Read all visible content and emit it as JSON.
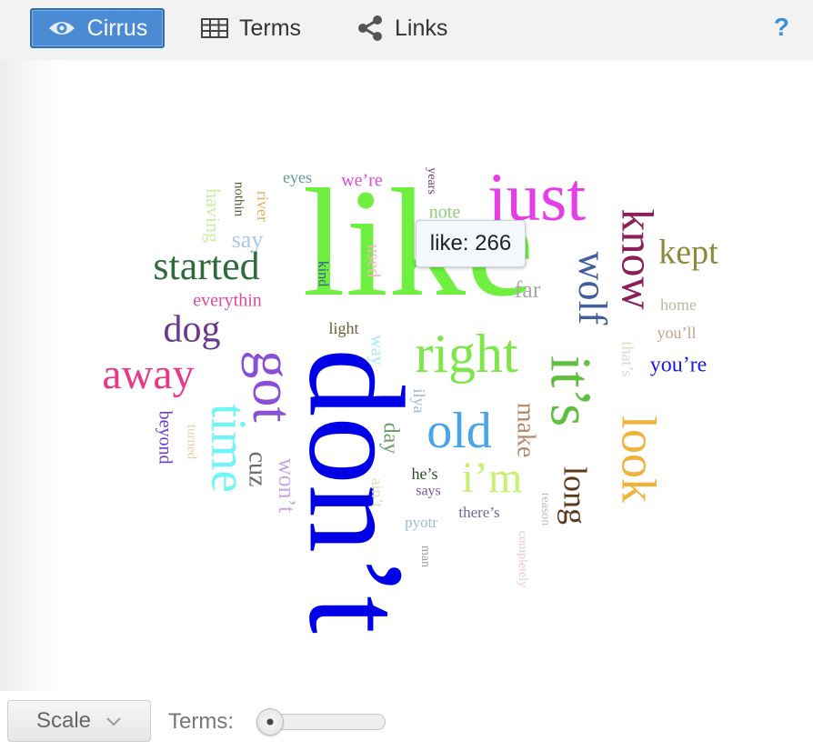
{
  "toolbar": {
    "tabs": [
      {
        "label": "Cirrus",
        "icon": "eye-icon",
        "active": true
      },
      {
        "label": "Terms",
        "icon": "table-grid-icon",
        "active": false
      },
      {
        "label": "Links",
        "icon": "share-nodes-icon",
        "active": false
      }
    ],
    "help_label": "?",
    "accent": "#4a8bd4"
  },
  "tooltip": {
    "text": "like: 266"
  },
  "footer": {
    "scale_label": "Scale",
    "terms_label": "Terms:",
    "terms_slider_fraction": 0.1
  },
  "cloud": {
    "words": [
      {
        "text": "like",
        "color": "#6fef3f"
      },
      {
        "text": "don’t",
        "color": "#0000e6"
      },
      {
        "text": "just",
        "color": "#e63ee6"
      },
      {
        "text": "right",
        "color": "#7fe64a"
      },
      {
        "text": "it’s",
        "color": "#5fbf3f"
      },
      {
        "text": "got",
        "color": "#8a4fd8"
      },
      {
        "text": "know",
        "color": "#8a1f5a"
      },
      {
        "text": "time",
        "color": "#6ff5f5"
      },
      {
        "text": "look",
        "color": "#f0b23a"
      },
      {
        "text": "started",
        "color": "#2f6b3a"
      },
      {
        "text": "away",
        "color": "#e6398a"
      },
      {
        "text": "wolf",
        "color": "#3f5f9f"
      },
      {
        "text": "old",
        "color": "#4aa5e8"
      },
      {
        "text": "i’m",
        "color": "#c8f070"
      },
      {
        "text": "dog",
        "color": "#6a3a8a"
      },
      {
        "text": "kept",
        "color": "#8a8a3a"
      },
      {
        "text": "long",
        "color": "#5a3a1a"
      },
      {
        "text": "make",
        "color": "#b58a6a"
      },
      {
        "text": "day",
        "color": "#6a9f6a"
      },
      {
        "text": "cuz",
        "color": "#6a6a6a"
      },
      {
        "text": "won’t",
        "color": "#c8a8e0"
      },
      {
        "text": "you’re",
        "color": "#1a1ae0"
      },
      {
        "text": "far",
        "color": "#a8a8a8"
      },
      {
        "text": "say",
        "color": "#a8c8e8"
      },
      {
        "text": "note",
        "color": "#8fd07a"
      },
      {
        "text": "we’re",
        "color": "#e04ad8"
      },
      {
        "text": "everythin",
        "color": "#e04a9a"
      },
      {
        "text": "beyond",
        "color": "#6a3ae0"
      },
      {
        "text": "having",
        "color": "#c8f0a0"
      },
      {
        "text": "used",
        "color": "#f0b8b8"
      },
      {
        "text": "that’s",
        "color": "#e0d8c8"
      },
      {
        "text": "you’ll",
        "color": "#c8a08a"
      },
      {
        "text": "home",
        "color": "#b8b8a8"
      },
      {
        "text": "way",
        "color": "#a8e8f0"
      },
      {
        "text": "ilya",
        "color": "#a0b8d8"
      },
      {
        "text": "river",
        "color": "#e0b060"
      },
      {
        "text": "nothin",
        "color": "#5a5a3a"
      },
      {
        "text": "eyes",
        "color": "#5a9a9a"
      },
      {
        "text": "years",
        "color": "#7a3a6a"
      },
      {
        "text": "kind",
        "color": "#3a5a9a"
      },
      {
        "text": "light",
        "color": "#6a5a3a"
      },
      {
        "text": "turned",
        "color": "#e8d0a0"
      },
      {
        "text": "ain’t",
        "color": "#e0e0b8"
      },
      {
        "text": "he’s",
        "color": "#2a4a2a"
      },
      {
        "text": "says",
        "color": "#7a5aa0"
      },
      {
        "text": "there’s",
        "color": "#6a6aa0"
      },
      {
        "text": "pyotr",
        "color": "#a0b8d8"
      },
      {
        "text": "man",
        "color": "#a0a0a0"
      },
      {
        "text": "reason",
        "color": "#d0b8b8"
      },
      {
        "text": "completely",
        "color": "#f0c8c8"
      }
    ]
  }
}
